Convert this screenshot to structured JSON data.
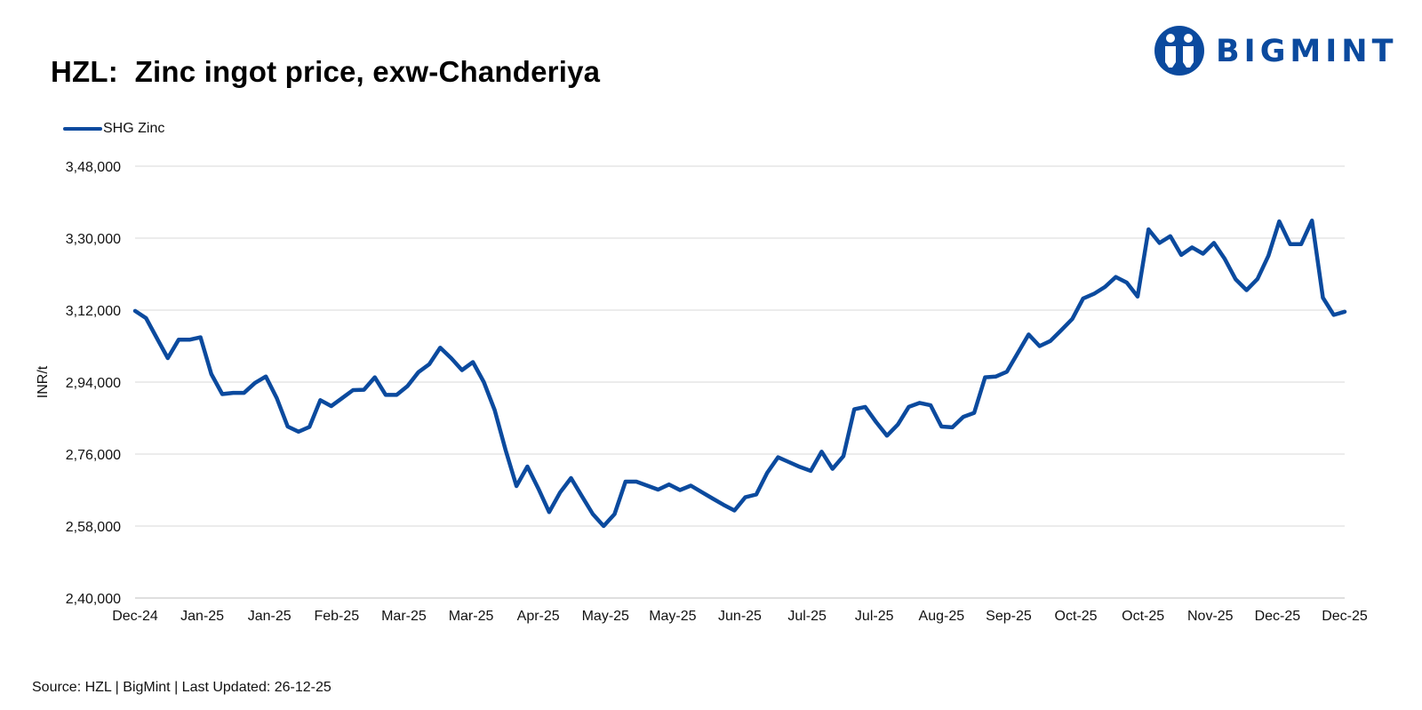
{
  "title": "HZL:  Zinc ingot price, exw-Chanderiya",
  "logo": {
    "text": "BIGMINT",
    "color": "#0b4a9e"
  },
  "source": "Source: HZL | BigMint | Last Updated: 26-12-25",
  "colors": {
    "line": "#0b4a9e",
    "grid": "#d9d9d9",
    "axis": "#bfbfbf",
    "text": "#111111"
  },
  "chart_data": {
    "type": "line",
    "ylabel": "INR/t",
    "ylim": [
      240000,
      348000
    ],
    "yticks": [
      240000,
      258000,
      276000,
      294000,
      312000,
      330000,
      348000
    ],
    "ytick_labels": [
      "2,40,000",
      "2,58,000",
      "2,76,000",
      "2,94,000",
      "3,12,000",
      "3,30,000",
      "3,48,000"
    ],
    "xtick_labels": [
      "Dec-24",
      "Jan-25",
      "Jan-25",
      "Feb-25",
      "Mar-25",
      "Mar-25",
      "Apr-25",
      "May-25",
      "May-25",
      "Jun-25",
      "Jul-25",
      "Jul-25",
      "Aug-25",
      "Sep-25",
      "Oct-25",
      "Oct-25",
      "Nov-25",
      "Dec-25",
      "Dec-25"
    ],
    "grid": true,
    "legend_position": "top-left",
    "series": [
      {
        "name": "SHG Zinc",
        "color": "#0b4a9e",
        "values": [
          311800,
          310000,
          305000,
          300000,
          304600,
          304600,
          305200,
          296000,
          291000,
          291300,
          291300,
          293800,
          295400,
          290000,
          282900,
          281600,
          282800,
          289500,
          288000,
          290000,
          292000,
          292100,
          295200,
          290800,
          290800,
          293000,
          296500,
          298500,
          302600,
          300000,
          297000,
          299000,
          294000,
          287000,
          277000,
          268000,
          272900,
          267400,
          261500,
          266400,
          270000,
          265500,
          261000,
          258000,
          261000,
          269100,
          269100,
          268100,
          267100,
          268400,
          267000,
          268100,
          266500,
          264900,
          263300,
          261900,
          265200,
          265900,
          271300,
          275200,
          274000,
          272800,
          271800,
          276600,
          272300,
          275500,
          287200,
          287800,
          284000,
          280600,
          283400,
          287800,
          288800,
          288200,
          282900,
          282700,
          285300,
          286300,
          295200,
          295400,
          296600,
          301300,
          305900,
          303000,
          304300,
          307000,
          309800,
          314900,
          316100,
          317800,
          320300,
          318900,
          315400,
          332200,
          328800,
          330500,
          325800,
          327700,
          326100,
          328800,
          324800,
          319700,
          317000,
          319800,
          325600,
          334200,
          328500,
          328500,
          334400,
          315100,
          310800,
          311600
        ]
      }
    ]
  }
}
